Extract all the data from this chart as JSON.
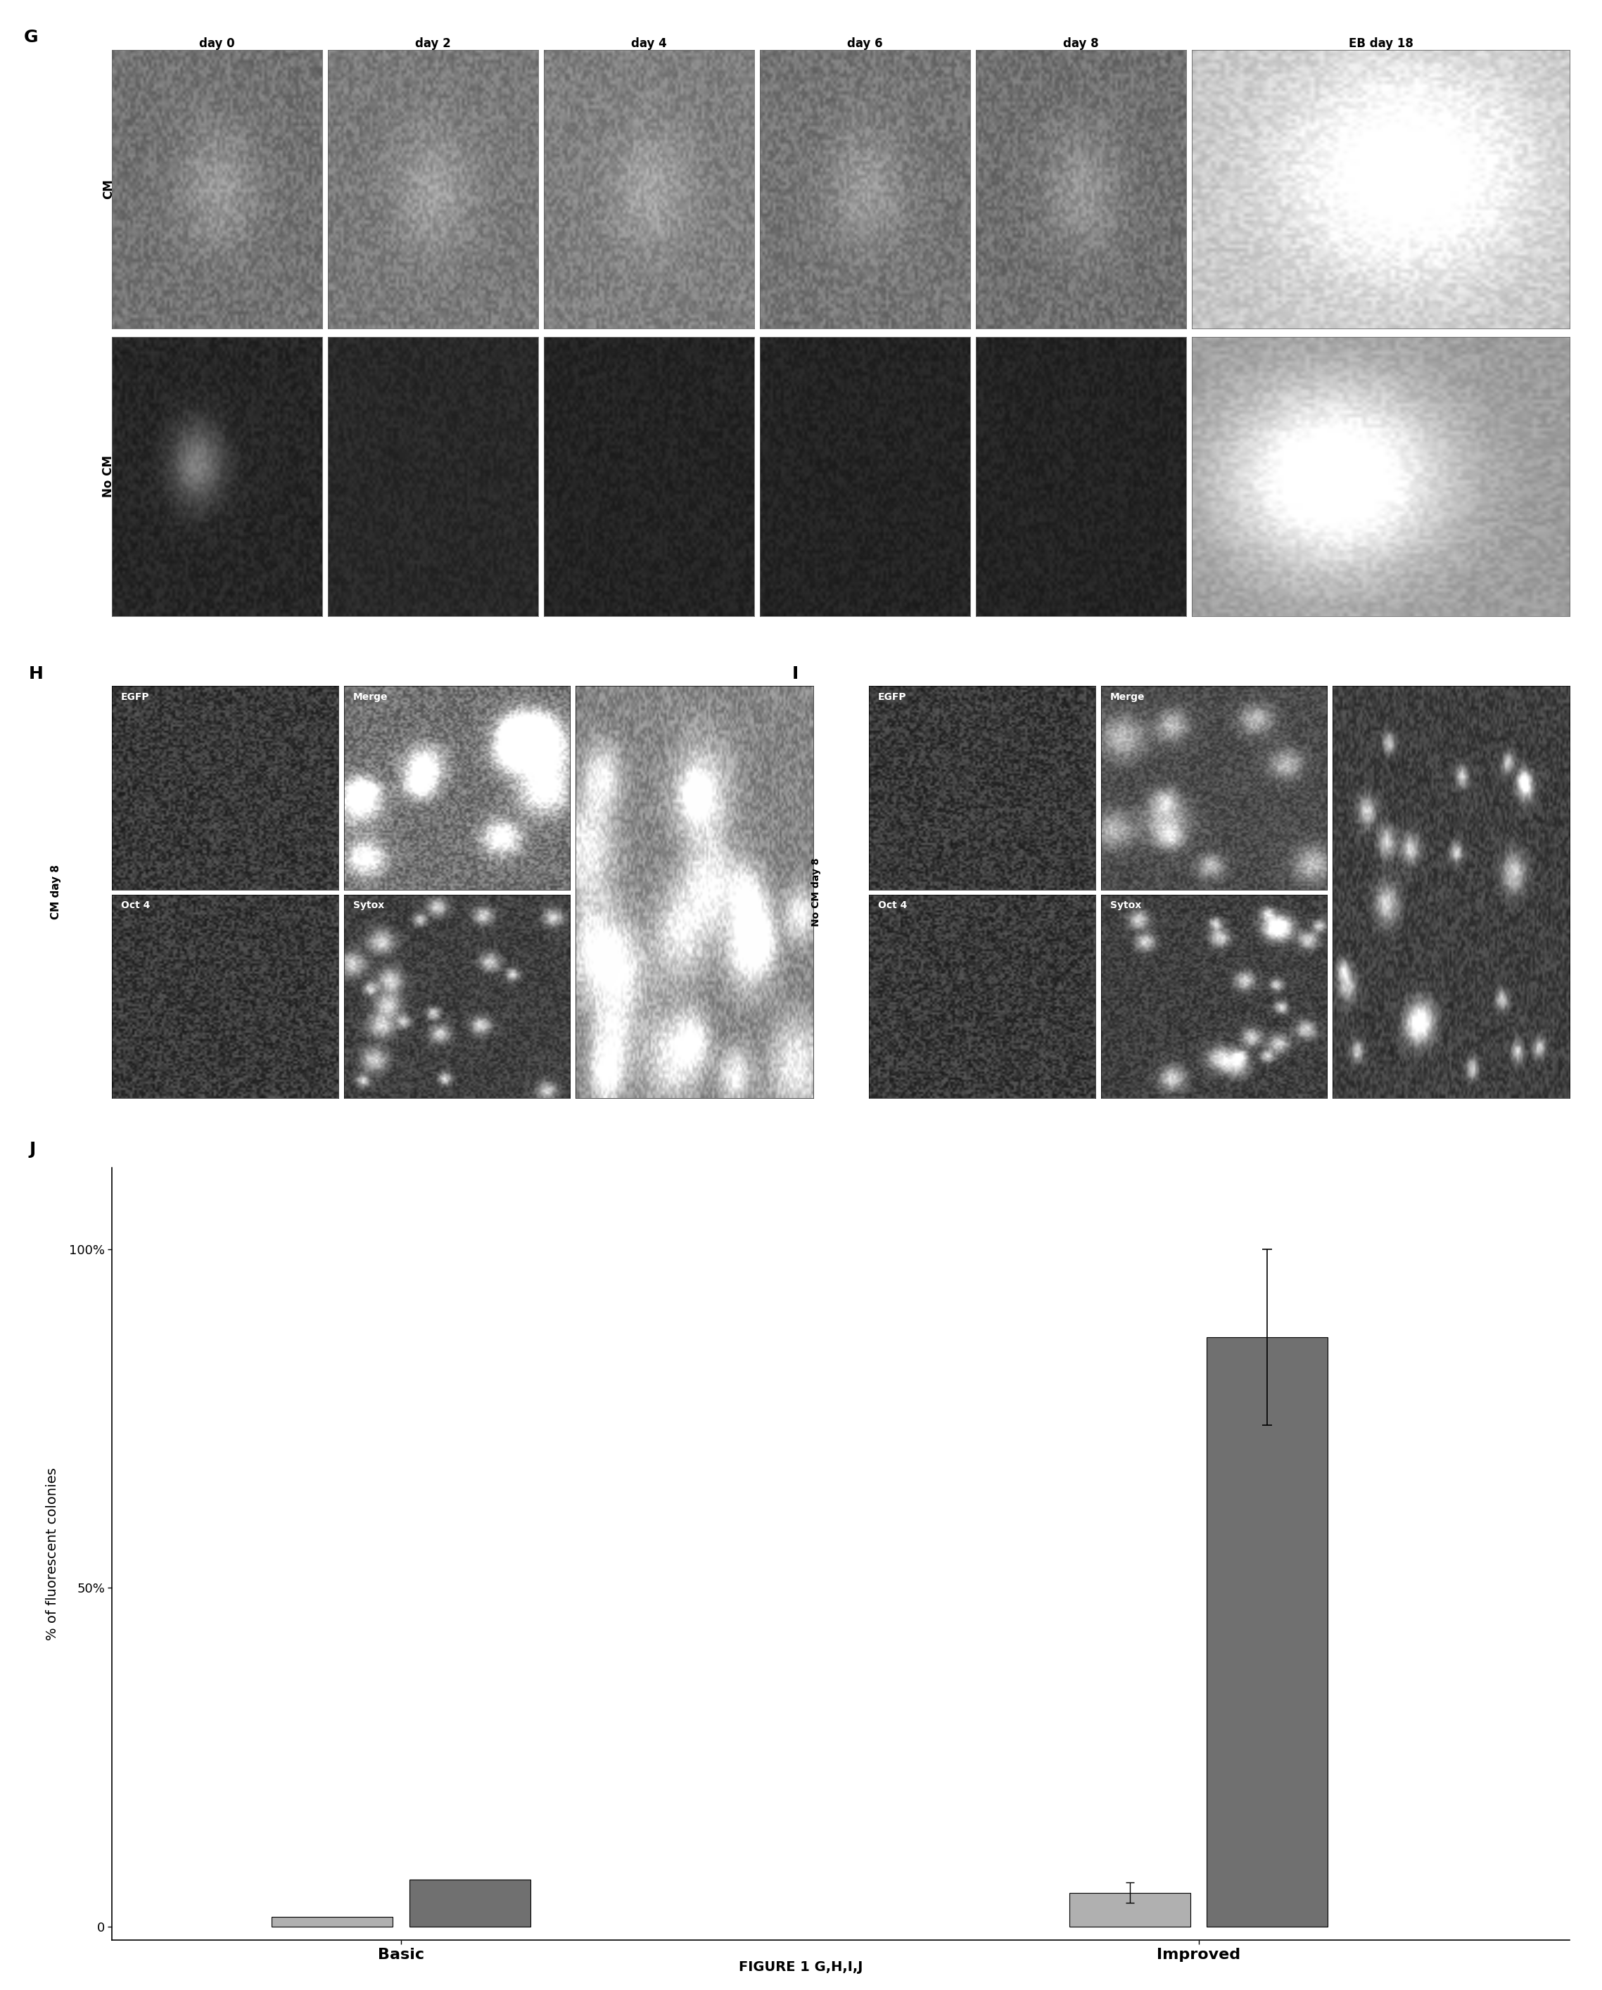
{
  "panel_G_label": "G",
  "panel_H_label": "H",
  "panel_I_label": "I",
  "panel_J_label": "J",
  "col_labels": [
    "day 0",
    "day 2",
    "day 4",
    "day 6",
    "day 8",
    "EB day 18"
  ],
  "row_labels_G": [
    "CM",
    "No CM"
  ],
  "H_sublabels_top": [
    "EGFP",
    "Merge"
  ],
  "H_sublabels_bot": [
    "Oct 4",
    "Sytox"
  ],
  "I_sublabels_top": [
    "EGFP",
    "Merge"
  ],
  "I_sublabels_bot": [
    "Oct 4",
    "Sytox"
  ],
  "ylabel_J": "% of fluorescent colonies",
  "xtick_labels_J": [
    "Basic",
    "Improved"
  ],
  "bar1_basic": 1.5,
  "bar2_basic": 7.0,
  "bar1_improved": 5.0,
  "bar2_improved": 87.0,
  "bar_color_light": "#b0b0b0",
  "bar_color_dark": "#707070",
  "bar2_improved_err": 13.0,
  "bar1_improved_err": 1.5,
  "yticks_J": [
    0,
    50,
    100
  ],
  "figure_caption": "FIGURE 1 G,H,I,J",
  "G_col_widths": [
    1,
    1,
    1,
    1,
    1,
    1.8
  ],
  "G_CM_brightness": [
    0.45,
    0.48,
    0.5,
    0.46,
    0.44,
    0.7
  ],
  "G_NoCM_brightness": [
    0.15,
    0.12,
    0.1,
    0.1,
    0.1,
    0.55
  ]
}
